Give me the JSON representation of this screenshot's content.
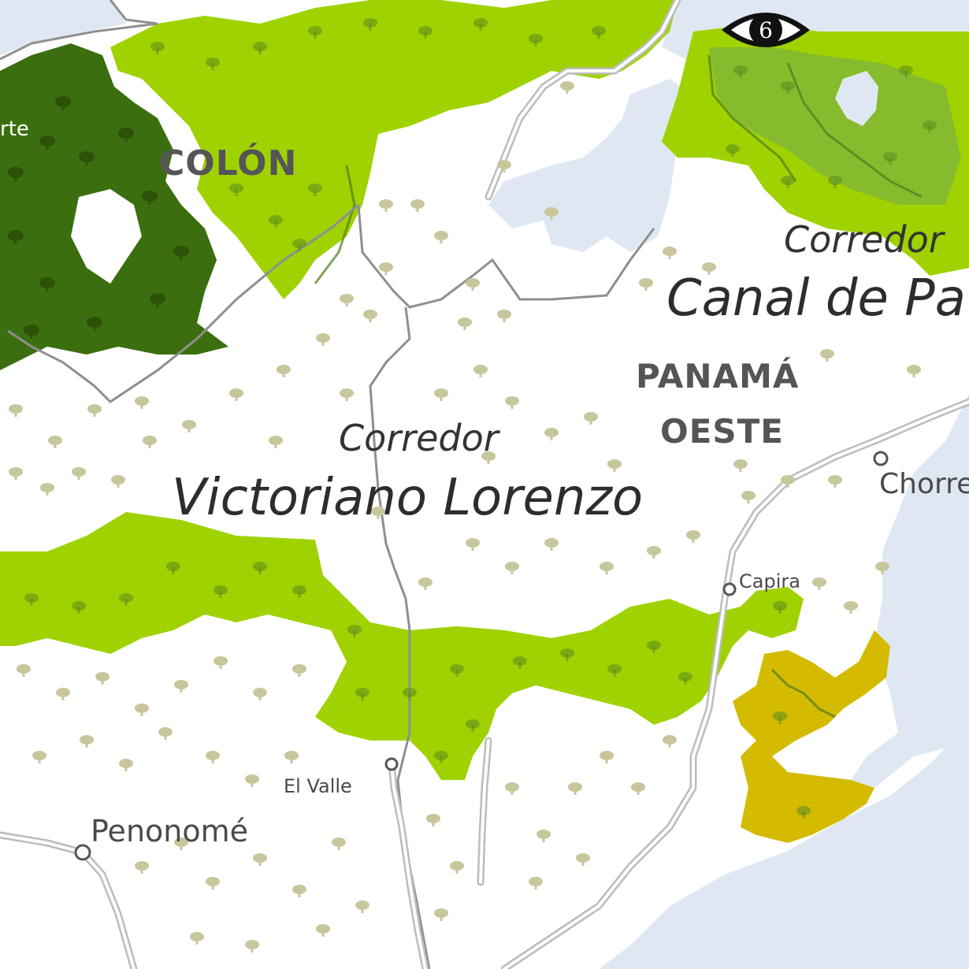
{
  "map": {
    "colors": {
      "sea": "#dfe8f2",
      "land": "#ffffff",
      "forest_light": "#9fd200",
      "forest_mid": "#86bb2d",
      "forest_dark": "#3b6e0f",
      "mangrove": "#d4bb00",
      "tree_symbol": "#c8c69c",
      "boundary": "#8f8f8f",
      "road": "#bcbcbc"
    },
    "corridors": {
      "victoriano": {
        "prefix": "Corredor",
        "name": "Victoriano Lorenzo"
      },
      "canal": {
        "prefix": "Corredor",
        "name": "Canal de Pa"
      }
    },
    "provinces": {
      "colon": "COLÓN",
      "panama_oeste_line1": "PANAMÁ",
      "panama_oeste_line2": "OESTE"
    },
    "places": {
      "partial_west": "rte",
      "chorrera": "Chorre",
      "capira": "Capira",
      "el_valle": "El Valle",
      "penonome": "Penonomé"
    },
    "viewpoint_marker": {
      "number": "6",
      "icon": "eye-icon"
    }
  }
}
